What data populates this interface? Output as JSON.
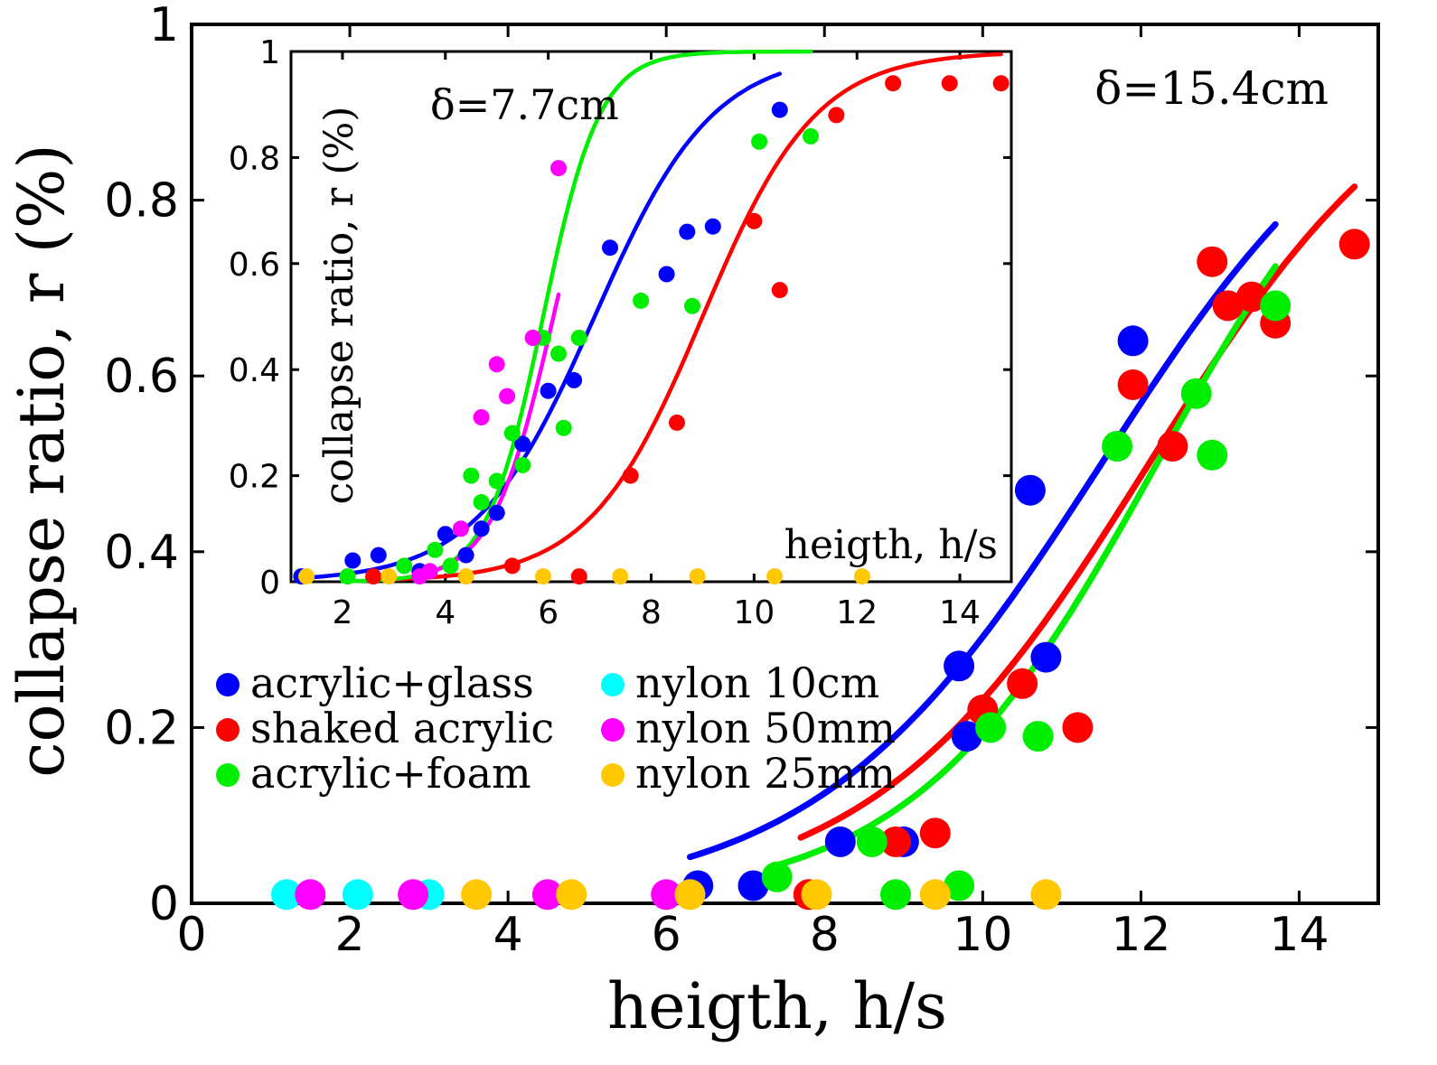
{
  "colors": {
    "acrylic_glass": "#0000ff",
    "shaked_acrylic": "#ff0000",
    "acrylic_foam": "#00ee00",
    "nylon_10cm": "#00ffff",
    "nylon_50mm": "#ff00ff",
    "nylon_25mm": "#ffc800"
  },
  "chart_data": [
    {
      "type": "scatter",
      "panel": "main",
      "annotation": "δ=15.4cm",
      "xlabel": "heigth, h/s",
      "ylabel": "collapse ratio, r (%)",
      "xlim": [
        0,
        15
      ],
      "ylim": [
        0,
        1
      ],
      "xticks": [
        "0",
        "2",
        "4",
        "6",
        "8",
        "10",
        "12",
        "14"
      ],
      "yticks": [
        "0",
        "0.2",
        "0.4",
        "0.6",
        "0.8",
        "1"
      ],
      "legend_position": "lower-left",
      "series": [
        {
          "key": "acrylic_glass",
          "name": "acrylic+glass",
          "points": [
            [
              6.4,
              0.02
            ],
            [
              7.1,
              0.02
            ],
            [
              8.2,
              0.07
            ],
            [
              9.0,
              0.07
            ],
            [
              9.7,
              0.27
            ],
            [
              9.8,
              0.19
            ],
            [
              10.6,
              0.47
            ],
            [
              10.8,
              0.28
            ],
            [
              11.9,
              0.64
            ]
          ],
          "fit": {
            "x0": 11.5,
            "k": 1.8,
            "xmin": 6.3,
            "xmax": 13.7
          }
        },
        {
          "key": "shaked_acrylic",
          "name": "shaked acrylic",
          "points": [
            [
              7.8,
              0.01
            ],
            [
              8.9,
              0.07
            ],
            [
              9.4,
              0.08
            ],
            [
              10.0,
              0.22
            ],
            [
              10.5,
              0.25
            ],
            [
              11.2,
              0.2
            ],
            [
              11.9,
              0.59
            ],
            [
              12.4,
              0.52
            ],
            [
              12.9,
              0.73
            ],
            [
              13.1,
              0.68
            ],
            [
              13.4,
              0.69
            ],
            [
              13.7,
              0.66
            ],
            [
              14.7,
              0.75
            ]
          ],
          "fit": {
            "x0": 12.1,
            "k": 1.75,
            "xmin": 7.7,
            "xmax": 14.7
          }
        },
        {
          "key": "acrylic_foam",
          "name": "acrylic+foam",
          "points": [
            [
              7.4,
              0.03
            ],
            [
              8.6,
              0.07
            ],
            [
              8.9,
              0.01
            ],
            [
              9.7,
              0.02
            ],
            [
              10.1,
              0.2
            ],
            [
              10.7,
              0.19
            ],
            [
              11.7,
              0.52
            ],
            [
              12.7,
              0.58
            ],
            [
              12.9,
              0.51
            ],
            [
              13.7,
              0.68
            ]
          ],
          "fit": {
            "x0": 12.2,
            "k": 1.55,
            "xmin": 7.4,
            "xmax": 13.7
          }
        },
        {
          "key": "nylon_10cm",
          "name": "nylon 10cm",
          "points": [
            [
              1.2,
              0.01
            ],
            [
              2.1,
              0.01
            ],
            [
              3.0,
              0.01
            ]
          ]
        },
        {
          "key": "nylon_50mm",
          "name": "nylon 50mm",
          "points": [
            [
              1.5,
              0.01
            ],
            [
              2.8,
              0.01
            ],
            [
              4.5,
              0.01
            ],
            [
              6.0,
              0.01
            ]
          ]
        },
        {
          "key": "nylon_25mm",
          "name": "nylon 25mm",
          "points": [
            [
              3.6,
              0.01
            ],
            [
              4.8,
              0.01
            ],
            [
              6.3,
              0.01
            ],
            [
              7.9,
              0.01
            ],
            [
              9.4,
              0.01
            ],
            [
              10.8,
              0.01
            ]
          ]
        }
      ]
    },
    {
      "type": "scatter",
      "panel": "inset",
      "annotation": "δ=7.7cm",
      "xlabel": "heigth, h/s",
      "ylabel": "collapse ratio, r (%)",
      "xlim": [
        1,
        15
      ],
      "ylim": [
        0,
        1
      ],
      "xticks": [
        "2",
        "4",
        "6",
        "8",
        "10",
        "12",
        "14"
      ],
      "yticks": [
        "0",
        "0.2",
        "0.4",
        "0.6",
        "0.8",
        "1"
      ],
      "series": [
        {
          "key": "acrylic_glass",
          "points": [
            [
              1.2,
              0.01
            ],
            [
              2.2,
              0.04
            ],
            [
              2.7,
              0.05
            ],
            [
              3.5,
              0.02
            ],
            [
              4.0,
              0.09
            ],
            [
              4.4,
              0.05
            ],
            [
              4.7,
              0.1
            ],
            [
              5.0,
              0.13
            ],
            [
              5.5,
              0.26
            ],
            [
              6.0,
              0.36
            ],
            [
              6.5,
              0.38
            ],
            [
              7.2,
              0.63
            ],
            [
              8.3,
              0.58
            ],
            [
              8.7,
              0.66
            ],
            [
              9.2,
              0.67
            ],
            [
              10.5,
              0.89
            ]
          ],
          "fit": {
            "x0": 6.9,
            "k": 1.15,
            "xmin": 1.2,
            "xmax": 10.5
          }
        },
        {
          "key": "shaked_acrylic",
          "points": [
            [
              2.6,
              0.01
            ],
            [
              5.3,
              0.03
            ],
            [
              6.6,
              0.01
            ],
            [
              7.6,
              0.2
            ],
            [
              8.5,
              0.3
            ],
            [
              10.0,
              0.68
            ],
            [
              10.5,
              0.55
            ],
            [
              11.6,
              0.88
            ],
            [
              12.7,
              0.94
            ],
            [
              13.8,
              0.94
            ],
            [
              14.8,
              0.94
            ]
          ],
          "fit": {
            "x0": 9.0,
            "k": 1.1,
            "xmin": 2.6,
            "xmax": 14.8
          }
        },
        {
          "key": "acrylic_foam",
          "points": [
            [
              2.1,
              0.01
            ],
            [
              3.2,
              0.03
            ],
            [
              3.8,
              0.06
            ],
            [
              4.1,
              0.03
            ],
            [
              4.5,
              0.2
            ],
            [
              4.7,
              0.15
            ],
            [
              5.0,
              0.19
            ],
            [
              5.3,
              0.28
            ],
            [
              5.5,
              0.22
            ],
            [
              5.9,
              0.46
            ],
            [
              6.2,
              0.43
            ],
            [
              6.3,
              0.29
            ],
            [
              6.6,
              0.46
            ],
            [
              7.8,
              0.53
            ],
            [
              8.8,
              0.52
            ],
            [
              10.1,
              0.83
            ],
            [
              11.1,
              0.84
            ]
          ],
          "fit": {
            "x0": 5.9,
            "k": 0.55,
            "xmin": 2.0,
            "xmax": 11.1
          }
        },
        {
          "key": "nylon_50mm",
          "points": [
            [
              3.5,
              0.01
            ],
            [
              3.7,
              0.02
            ],
            [
              4.3,
              0.1
            ],
            [
              4.7,
              0.31
            ],
            [
              5.0,
              0.41
            ],
            [
              5.2,
              0.35
            ],
            [
              5.7,
              0.46
            ],
            [
              6.2,
              0.78
            ]
          ],
          "fit": {
            "x0": 6.1,
            "k": 0.6,
            "xmin": 3.4,
            "xmax": 6.2
          }
        },
        {
          "key": "nylon_25mm",
          "points": [
            [
              1.3,
              0.01
            ],
            [
              2.9,
              0.01
            ],
            [
              4.4,
              0.01
            ],
            [
              5.9,
              0.01
            ],
            [
              7.4,
              0.01
            ],
            [
              8.9,
              0.01
            ],
            [
              10.4,
              0.01
            ],
            [
              12.1,
              0.01
            ]
          ]
        }
      ]
    }
  ]
}
